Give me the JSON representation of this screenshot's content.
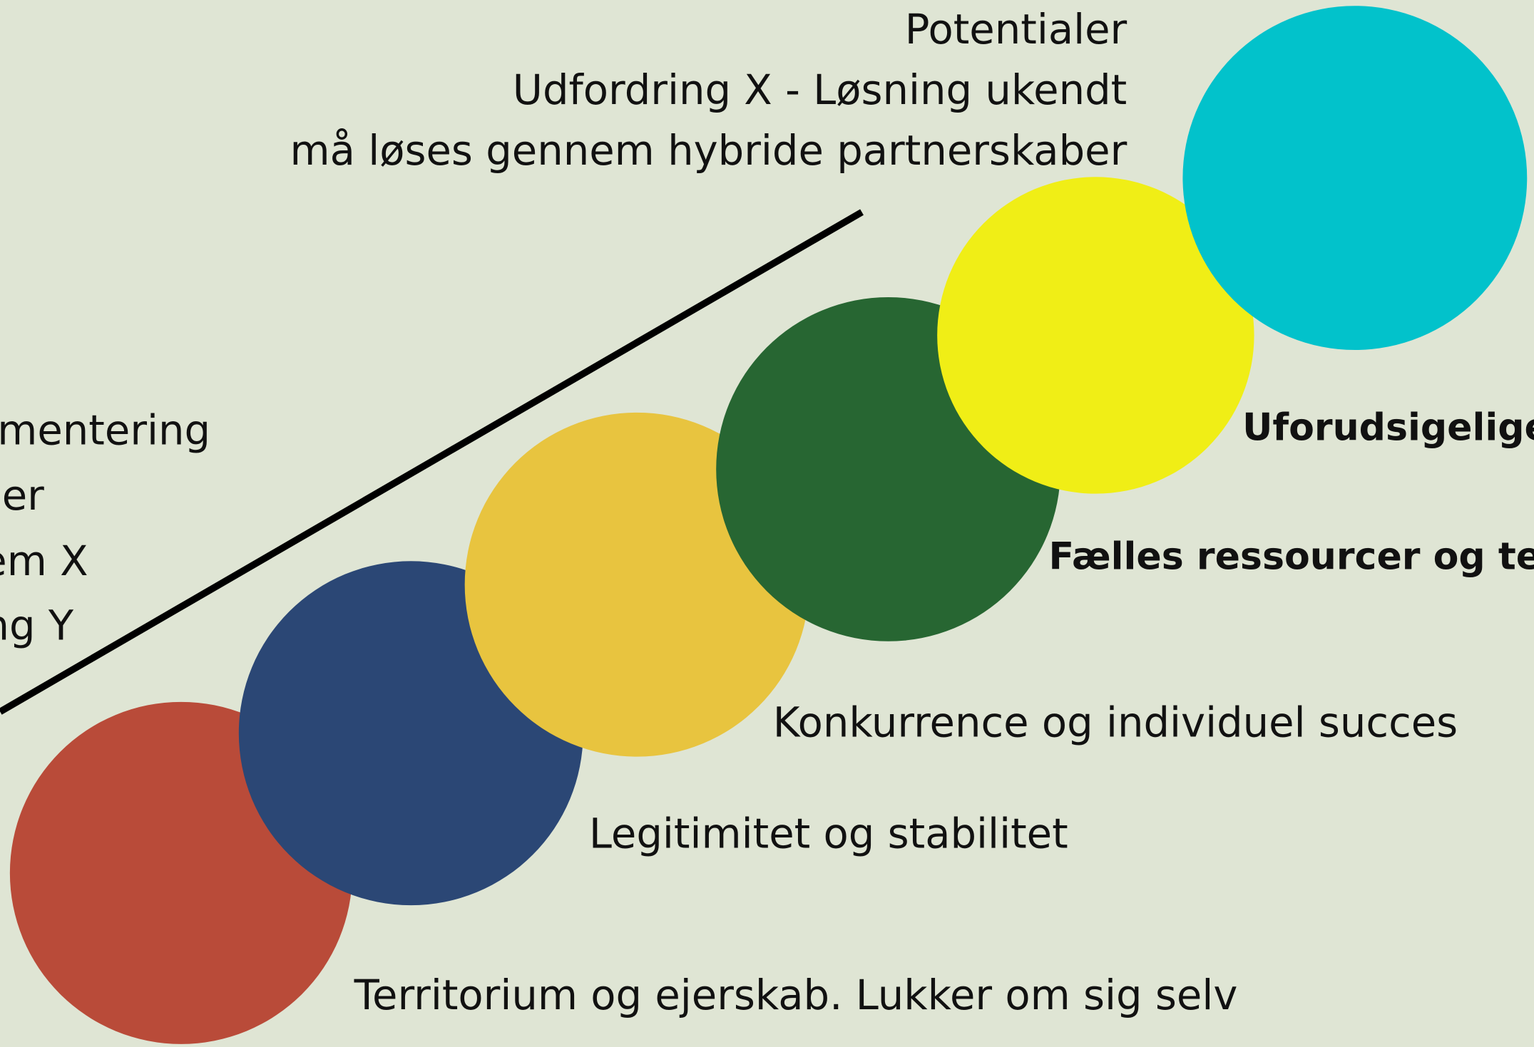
{
  "heading": {
    "lines": [
      "Potentialer",
      "Udfordring X -  Løsning ukendt",
      "må løses gennem hybride partnerskaber"
    ]
  },
  "left_text": {
    "lines": [
      "mentering",
      "er",
      "em X",
      "ng Y"
    ]
  },
  "levels": [
    {
      "label": "Territorium og ejerskab. Lukker om sig selv"
    },
    {
      "label": "Legitimitet og stabilitet"
    },
    {
      "label": "Konkurrence og individuel succes"
    },
    {
      "label": "Fælles ressourcer og tea"
    },
    {
      "label": "Uforudsigelige"
    }
  ]
}
